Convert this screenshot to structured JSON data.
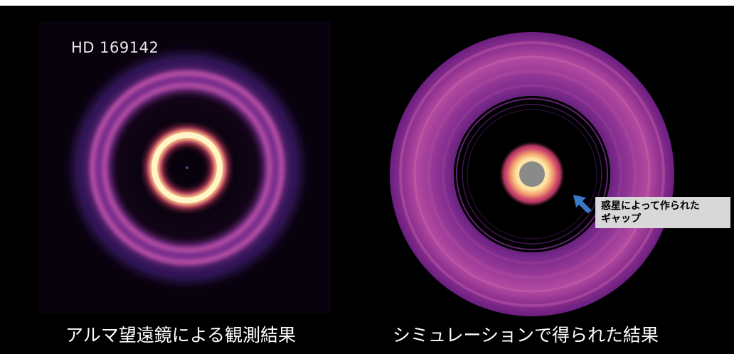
{
  "observation": {
    "target_label": "HD 169142",
    "caption": "アルマ望遠鏡による観測結果"
  },
  "simulation": {
    "caption": "シミュレーションで得られた結果",
    "annotation": {
      "line1": "惑星によって作られた",
      "line2": "ギャップ"
    }
  },
  "colors": {
    "background": "#000000",
    "ring_core": "#fff6c8",
    "ring_glow": "#f9a86a",
    "outer_ring": "#c85aa8",
    "disk_purple": "#7a2a8c",
    "arrow_blue": "#3a78c8",
    "annotation_bg": "#d8d8d8",
    "star_gray": "#8a8a8a"
  }
}
